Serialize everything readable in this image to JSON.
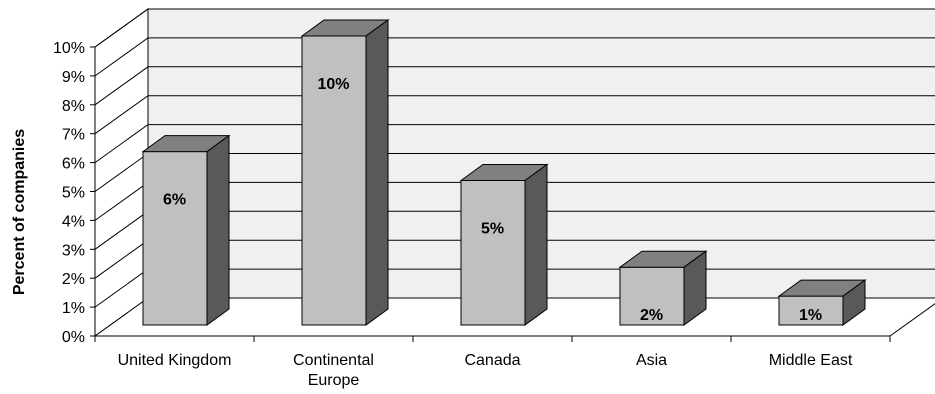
{
  "chart_data": {
    "type": "bar",
    "style": "3d-column",
    "categories": [
      "United Kingdom",
      "Continental Europe",
      "Canada",
      "Asia",
      "Middle East"
    ],
    "category_lines": [
      [
        "United Kingdom"
      ],
      [
        "Continental",
        "Europe"
      ],
      [
        "Canada"
      ],
      [
        "Asia"
      ],
      [
        "Middle East"
      ]
    ],
    "values": [
      6,
      10,
      5,
      2,
      1
    ],
    "data_labels": [
      "6%",
      "10%",
      "5%",
      "2%",
      "1%"
    ],
    "title": "",
    "xlabel": "",
    "ylabel": "Percent of companies",
    "ylim": [
      0,
      10
    ],
    "y_ticks": [
      "0%",
      "1%",
      "2%",
      "3%",
      "4%",
      "5%",
      "6%",
      "7%",
      "8%",
      "9%",
      "10%"
    ],
    "grid": true,
    "legend": "none",
    "colors": {
      "bar_front": "#c0c0c0",
      "bar_top": "#808080",
      "bar_side": "#595959",
      "back_wall": "#f0f0f0",
      "side_wall": "#ffffff",
      "gridline": "#000000"
    }
  }
}
